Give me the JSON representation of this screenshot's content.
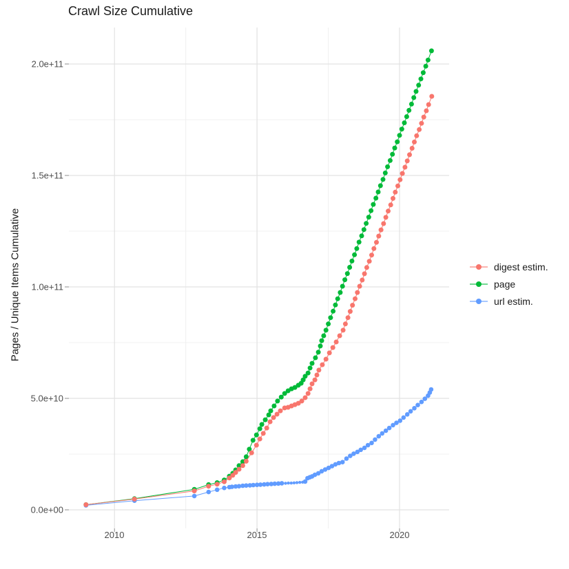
{
  "title": "Crawl Size Cumulative",
  "axes": {
    "y_label": "Pages / Unique Items Cumulative",
    "x_label": "",
    "y_ticks": [
      {
        "label": "0.0e+00",
        "value_e9": 0
      },
      {
        "label": "5.0e+10",
        "value_e9": 50
      },
      {
        "label": "1.0e+11",
        "value_e9": 100
      },
      {
        "label": "1.5e+11",
        "value_e9": 150
      },
      {
        "label": "2.0e+11",
        "value_e9": 200
      }
    ],
    "x_ticks": [
      {
        "label": "2010",
        "value": 2010
      },
      {
        "label": "2015",
        "value": 2015
      },
      {
        "label": "2020",
        "value": 2020
      }
    ]
  },
  "legend": {
    "items": [
      {
        "label": "digest estim.",
        "color": "#F8766D"
      },
      {
        "label": "page",
        "color": "#00BA38"
      },
      {
        "label": "url estim.",
        "color": "#619CFF"
      }
    ]
  },
  "chart_data": {
    "type": "scatter",
    "title": "Crawl Size Cumulative",
    "xlabel": "",
    "ylabel": "Pages / Unique Items Cumulative",
    "x_range_years": [
      2008.4,
      2021.74
    ],
    "ylim_e9": [
      0,
      216
    ],
    "unit_note": "point values are [decimal_year, cumulative_count_in_billions(1e9)]; optional 3rd element 1 = small point",
    "grid": {
      "major_color": "#e2e2e2",
      "minor_color": "#f0f0f0",
      "x_major_years": [
        2010,
        2015,
        2020
      ],
      "x_minor_years": [
        2012.5,
        2017.5
      ],
      "y_major_e9": [
        0,
        50,
        100,
        150,
        200
      ],
      "y_minor_e9": [
        25,
        75,
        125,
        175
      ]
    },
    "tick_color": "#8c8c8c",
    "small_radius": 2.2,
    "draw_order": [
      1,
      2,
      0
    ],
    "series": [
      {
        "name": "digest estim.",
        "color": "#F8766D",
        "radius": 3.5,
        "points": [
          [
            2009.0,
            2.3
          ],
          [
            2010.7,
            4.8
          ],
          [
            2012.8,
            8.5
          ],
          [
            2013.3,
            10.6
          ],
          [
            2013.6,
            11.5
          ],
          [
            2013.85,
            12.6
          ],
          [
            2014.03,
            14.3
          ],
          [
            2014.15,
            15.5
          ],
          [
            2014.25,
            16.8
          ],
          [
            2014.37,
            18.2
          ],
          [
            2014.5,
            19.8
          ],
          [
            2014.62,
            21.8
          ],
          [
            2014.81,
            25.6
          ],
          [
            2014.98,
            29.0
          ],
          [
            2015.1,
            31.8
          ],
          [
            2015.22,
            34.3
          ],
          [
            2015.34,
            36.7
          ],
          [
            2015.46,
            39.5
          ],
          [
            2015.58,
            41.4
          ],
          [
            2015.7,
            42.9
          ],
          [
            2015.82,
            44.4
          ],
          [
            2015.97,
            45.7
          ],
          [
            2016.09,
            46.0
          ],
          [
            2016.21,
            46.6
          ],
          [
            2016.33,
            47.2
          ],
          [
            2016.45,
            47.8
          ],
          [
            2016.57,
            48.8
          ],
          [
            2016.69,
            50.3
          ],
          [
            2016.79,
            52.2
          ],
          [
            2016.86,
            54.3
          ],
          [
            2016.93,
            56.5
          ],
          [
            2017.03,
            58.3
          ],
          [
            2017.1,
            60.5
          ],
          [
            2017.17,
            62.7
          ],
          [
            2017.29,
            65.1
          ],
          [
            2017.42,
            67.6
          ],
          [
            2017.54,
            70.4
          ],
          [
            2017.66,
            72.8
          ],
          [
            2017.78,
            75.3
          ],
          [
            2017.9,
            78.1
          ],
          [
            2018.02,
            80.6
          ],
          [
            2018.1,
            83.4
          ],
          [
            2018.19,
            86.2
          ],
          [
            2018.27,
            89.0
          ],
          [
            2018.35,
            91.8
          ],
          [
            2018.44,
            94.7
          ],
          [
            2018.52,
            97.5
          ],
          [
            2018.6,
            100.3
          ],
          [
            2018.69,
            103.1
          ],
          [
            2018.77,
            105.9
          ],
          [
            2018.85,
            108.7
          ],
          [
            2018.94,
            111.5
          ],
          [
            2019.02,
            114.3
          ],
          [
            2019.1,
            117.2
          ],
          [
            2019.19,
            120.0
          ],
          [
            2019.27,
            122.8
          ],
          [
            2019.35,
            125.6
          ],
          [
            2019.44,
            128.4
          ],
          [
            2019.52,
            131.2
          ],
          [
            2019.6,
            134.0
          ],
          [
            2019.69,
            136.8
          ],
          [
            2019.77,
            139.7
          ],
          [
            2019.85,
            142.5
          ],
          [
            2019.94,
            145.3
          ],
          [
            2020.02,
            148.1
          ],
          [
            2020.1,
            150.9
          ],
          [
            2020.19,
            153.7
          ],
          [
            2020.27,
            156.5
          ],
          [
            2020.35,
            159.3
          ],
          [
            2020.44,
            162.2
          ],
          [
            2020.52,
            165.0
          ],
          [
            2020.6,
            167.8
          ],
          [
            2020.69,
            170.6
          ],
          [
            2020.77,
            173.4
          ],
          [
            2020.85,
            176.2
          ],
          [
            2020.94,
            179.0
          ],
          [
            2021.02,
            181.8
          ],
          [
            2021.13,
            185.5
          ]
        ]
      },
      {
        "name": "page",
        "color": "#00BA38",
        "radius": 3.5,
        "points": [
          [
            2009.0,
            2.3
          ],
          [
            2010.7,
            5.0
          ],
          [
            2012.8,
            9.2
          ],
          [
            2013.3,
            11.3
          ],
          [
            2013.6,
            12.2
          ],
          [
            2013.85,
            13.4
          ],
          [
            2014.03,
            15.1
          ],
          [
            2014.15,
            16.4
          ],
          [
            2014.25,
            17.9
          ],
          [
            2014.37,
            19.8
          ],
          [
            2014.5,
            21.6
          ],
          [
            2014.62,
            23.8
          ],
          [
            2014.73,
            27.2
          ],
          [
            2014.86,
            31.2
          ],
          [
            2014.98,
            33.6
          ],
          [
            2015.1,
            36.4
          ],
          [
            2015.17,
            38.3
          ],
          [
            2015.29,
            40.4
          ],
          [
            2015.41,
            42.6
          ],
          [
            2015.48,
            44.4
          ],
          [
            2015.6,
            46.6
          ],
          [
            2015.72,
            48.8
          ],
          [
            2015.85,
            50.6
          ],
          [
            2015.97,
            52.2
          ],
          [
            2016.09,
            53.4
          ],
          [
            2016.21,
            54.3
          ],
          [
            2016.33,
            54.9
          ],
          [
            2016.45,
            55.9
          ],
          [
            2016.55,
            56.8
          ],
          [
            2016.62,
            58.3
          ],
          [
            2016.69,
            59.9
          ],
          [
            2016.79,
            61.4
          ],
          [
            2016.86,
            63.6
          ],
          [
            2016.93,
            65.7
          ],
          [
            2017.05,
            68.2
          ],
          [
            2017.15,
            70.7
          ],
          [
            2017.22,
            73.5
          ],
          [
            2017.27,
            75.9
          ],
          [
            2017.34,
            78.1
          ],
          [
            2017.42,
            80.6
          ],
          [
            2017.5,
            83.4
          ],
          [
            2017.58,
            86.2
          ],
          [
            2017.67,
            89.1
          ],
          [
            2017.75,
            91.9
          ],
          [
            2017.83,
            94.7
          ],
          [
            2017.92,
            97.5
          ],
          [
            2018.0,
            100.3
          ],
          [
            2018.08,
            103.2
          ],
          [
            2018.17,
            106.0
          ],
          [
            2018.25,
            108.8
          ],
          [
            2018.33,
            111.6
          ],
          [
            2018.42,
            114.4
          ],
          [
            2018.5,
            117.2
          ],
          [
            2018.58,
            120.1
          ],
          [
            2018.67,
            122.9
          ],
          [
            2018.75,
            125.7
          ],
          [
            2018.83,
            128.5
          ],
          [
            2018.92,
            131.3
          ],
          [
            2019.0,
            134.2
          ],
          [
            2019.08,
            137.0
          ],
          [
            2019.17,
            139.8
          ],
          [
            2019.25,
            142.6
          ],
          [
            2019.33,
            145.4
          ],
          [
            2019.42,
            148.2
          ],
          [
            2019.5,
            151.1
          ],
          [
            2019.58,
            153.9
          ],
          [
            2019.67,
            156.7
          ],
          [
            2019.75,
            159.5
          ],
          [
            2019.83,
            162.3
          ],
          [
            2019.92,
            165.1
          ],
          [
            2020.0,
            168.0
          ],
          [
            2020.08,
            170.8
          ],
          [
            2020.17,
            173.6
          ],
          [
            2020.25,
            176.4
          ],
          [
            2020.33,
            179.2
          ],
          [
            2020.42,
            182.0
          ],
          [
            2020.5,
            184.9
          ],
          [
            2020.58,
            187.7
          ],
          [
            2020.67,
            190.5
          ],
          [
            2020.75,
            193.3
          ],
          [
            2020.83,
            196.1
          ],
          [
            2020.92,
            199.0
          ],
          [
            2021.0,
            201.8
          ],
          [
            2021.12,
            205.9
          ]
        ]
      },
      {
        "name": "url estim.",
        "color": "#619CFF",
        "radius": 3.3,
        "points": [
          [
            2009.0,
            2.0
          ],
          [
            2010.7,
            4.1
          ],
          [
            2012.8,
            6.2
          ],
          [
            2013.3,
            8.0
          ],
          [
            2013.6,
            9.0
          ],
          [
            2013.85,
            9.8
          ],
          [
            2014.03,
            10.2
          ],
          [
            2014.12,
            10.35
          ],
          [
            2014.25,
            10.5
          ],
          [
            2014.37,
            10.6
          ],
          [
            2014.5,
            10.8
          ],
          [
            2014.62,
            10.9
          ],
          [
            2014.75,
            11.0
          ],
          [
            2014.87,
            11.1
          ],
          [
            2015.0,
            11.2
          ],
          [
            2015.12,
            11.3
          ],
          [
            2015.25,
            11.4
          ],
          [
            2015.37,
            11.5
          ],
          [
            2015.5,
            11.6
          ],
          [
            2015.62,
            11.7
          ],
          [
            2015.75,
            11.8
          ],
          [
            2015.87,
            11.9
          ],
          [
            2016.0,
            11.9,
            1
          ],
          [
            2016.1,
            12.0,
            1
          ],
          [
            2016.2,
            12.0,
            1
          ],
          [
            2016.3,
            12.1,
            1
          ],
          [
            2016.4,
            12.2,
            1
          ],
          [
            2016.5,
            12.3,
            1
          ],
          [
            2016.6,
            12.4,
            1
          ],
          [
            2016.69,
            12.7
          ],
          [
            2016.77,
            14.2
          ],
          [
            2016.85,
            14.6
          ],
          [
            2016.93,
            15.0
          ],
          [
            2017.03,
            15.7
          ],
          [
            2017.15,
            16.4
          ],
          [
            2017.27,
            17.3
          ],
          [
            2017.39,
            18.1
          ],
          [
            2017.51,
            18.8
          ],
          [
            2017.63,
            19.6
          ],
          [
            2017.75,
            20.4
          ],
          [
            2017.87,
            21.0
          ],
          [
            2018.0,
            21.4
          ],
          [
            2018.14,
            23.0
          ],
          [
            2018.27,
            24.2
          ],
          [
            2018.39,
            25.2
          ],
          [
            2018.52,
            26.0
          ],
          [
            2018.64,
            26.9
          ],
          [
            2018.77,
            27.8
          ],
          [
            2018.89,
            29.0
          ],
          [
            2019.02,
            30.0
          ],
          [
            2019.14,
            31.5
          ],
          [
            2019.27,
            33.0
          ],
          [
            2019.39,
            34.3
          ],
          [
            2019.52,
            35.5
          ],
          [
            2019.64,
            36.7
          ],
          [
            2019.77,
            38.0
          ],
          [
            2019.89,
            39.0
          ],
          [
            2020.02,
            40.0
          ],
          [
            2020.14,
            41.4
          ],
          [
            2020.27,
            42.8
          ],
          [
            2020.39,
            44.2
          ],
          [
            2020.52,
            45.6
          ],
          [
            2020.64,
            47.0
          ],
          [
            2020.77,
            48.4
          ],
          [
            2020.89,
            49.8
          ],
          [
            2021.0,
            51.2
          ],
          [
            2021.06,
            52.6
          ],
          [
            2021.11,
            54.0
          ]
        ]
      }
    ]
  }
}
